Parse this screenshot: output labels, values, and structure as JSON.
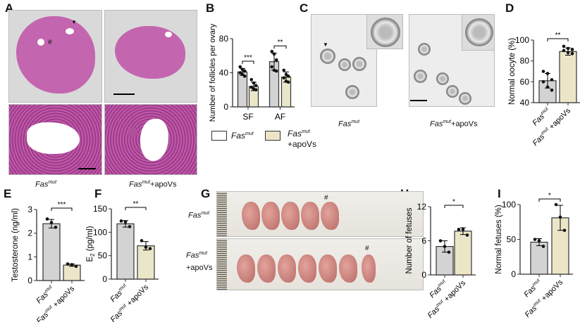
{
  "panels": {
    "A": "A",
    "B": "B",
    "C": "C",
    "D": "D",
    "E": "E",
    "F": "F",
    "G": "G",
    "H": "H",
    "I": "I"
  },
  "groups": {
    "mut": {
      "base": "Fas",
      "sup": "mut",
      "suffix": ""
    },
    "apo": {
      "base": "Fas",
      "sup": "mut",
      "suffix": "+apoVs"
    }
  },
  "image_marks": {
    "hash": "#",
    "arrowhead": "▼"
  },
  "colors": {
    "fasmut": "#d3d3d3",
    "apovs": "#ece6c8",
    "axis": "#333333",
    "point": "#111111"
  },
  "chart_data": [
    {
      "id": "B",
      "type": "bar",
      "ylabel": "Number of follicles per ovary",
      "ylim": [
        0,
        80
      ],
      "yticks": [
        0,
        40,
        80
      ],
      "categories": [
        "SF",
        "AF"
      ],
      "legend": {
        "placement": "bottom",
        "entries": [
          {
            "base": "Fas",
            "sup": "mut",
            "suffix": ""
          },
          {
            "base": "Fas",
            "sup": "mut",
            "suffix": "+apoVs"
          }
        ]
      },
      "series": [
        {
          "name": "Fasmut",
          "values": [
            41,
            53
          ],
          "sd": [
            4,
            10
          ],
          "points": [
            [
              47,
              44,
              42,
              40,
              38,
              36
            ],
            [
              65,
              62,
              55,
              47,
              43,
              42
            ]
          ]
        },
        {
          "name": "Fasmut+apoVs",
          "values": [
            24,
            35
          ],
          "sd": [
            5,
            6
          ],
          "points": [
            [
              32,
              28,
              25,
              23,
              21,
              20
            ],
            [
              43,
              38,
              36,
              34,
              30,
              29
            ]
          ]
        }
      ],
      "significance": [
        "***",
        "**"
      ]
    },
    {
      "id": "D",
      "type": "bar",
      "ylabel": "Normal oocyte (%)",
      "ylim": [
        40,
        100
      ],
      "yticks": [
        40,
        60,
        80,
        100
      ],
      "categories": [
        "Fasmut",
        "Fasmut +apoVs"
      ],
      "values": [
        61,
        89
      ],
      "sd": [
        7,
        3.5
      ],
      "points": [
        [
          70,
          68,
          62,
          60,
          55,
          52
        ],
        [
          94,
          92,
          91,
          90,
          88,
          87
        ]
      ],
      "significance": "**"
    },
    {
      "id": "E",
      "type": "bar",
      "ylabel": "Testosterone (ng/ml)",
      "ylim": [
        0,
        3
      ],
      "yticks": [
        0,
        1,
        2,
        3
      ],
      "categories": [
        "Fasmut",
        "Fasmut +apoVs"
      ],
      "values": [
        2.4,
        0.65
      ],
      "sd": [
        0.18,
        0.05
      ],
      "points": [
        [
          2.6,
          2.45,
          2.25
        ],
        [
          0.7,
          0.67,
          0.6
        ]
      ],
      "significance": "***"
    },
    {
      "id": "F",
      "type": "bar",
      "ylabel": "E2 (pg/ml)",
      "ylim": [
        0,
        150
      ],
      "yticks": [
        0,
        50,
        100,
        150
      ],
      "categories": [
        "Fasmut",
        "Fasmut +apoVs"
      ],
      "values": [
        118,
        71
      ],
      "sd": [
        7,
        9
      ],
      "points": [
        [
          124,
          122,
          112
        ],
        [
          82,
          68,
          65
        ]
      ],
      "significance": "**"
    },
    {
      "id": "H",
      "type": "bar",
      "ylabel": "Number of fetuses",
      "ylim": [
        0,
        12
      ],
      "yticks": [
        0,
        6,
        12
      ],
      "categories": [
        "Fasmut",
        "Fasmut +apoVs"
      ],
      "values": [
        5,
        7.7
      ],
      "sd": [
        1,
        0.6
      ],
      "points": [
        [
          6,
          5,
          4
        ],
        [
          8,
          8,
          7
        ]
      ],
      "significance": "*"
    },
    {
      "id": "I",
      "type": "bar",
      "ylabel": "Normal fetuses (%)",
      "ylim": [
        0,
        100
      ],
      "yticks": [
        0,
        50,
        100
      ],
      "categories": [
        "Fasmut",
        "Fasmut +apoVs"
      ],
      "values": [
        46,
        81
      ],
      "sd": [
        5,
        18
      ],
      "points": [
        [
          50,
          48,
          40
        ],
        [
          100,
          82,
          63
        ]
      ],
      "significance": "*"
    }
  ]
}
